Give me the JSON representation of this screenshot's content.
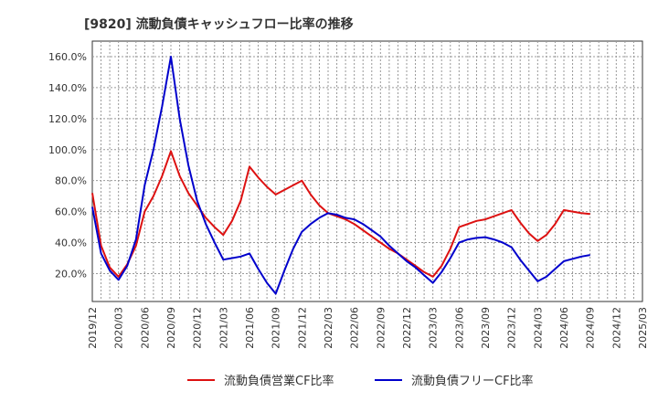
{
  "chart_data": {
    "type": "line",
    "title": "[9820]  流動負債キャッシュフロー比率の推移",
    "xlabel": "",
    "ylabel": "",
    "ylim": [
      2,
      170
    ],
    "y_ticks": [
      "20.0%",
      "40.0%",
      "60.0%",
      "80.0%",
      "100.0%",
      "120.0%",
      "140.0%",
      "160.0%"
    ],
    "y_tick_values": [
      20,
      40,
      60,
      80,
      100,
      120,
      140,
      160
    ],
    "x_ticks": [
      "2019/12",
      "2020/03",
      "2020/06",
      "2020/09",
      "2020/12",
      "2021/03",
      "2021/06",
      "2021/09",
      "2021/12",
      "2022/03",
      "2022/06",
      "2022/09",
      "2022/12",
      "2023/03",
      "2023/06",
      "2023/09",
      "2023/12",
      "2024/03",
      "2024/06",
      "2024/09",
      "2024/12",
      "2025/03"
    ],
    "grid": true,
    "legend_position": "bottom",
    "series": [
      {
        "name": "流動負債営業CF比率",
        "color": "#dd1111",
        "values": [
          [
            0,
            72
          ],
          [
            1,
            38
          ],
          [
            2,
            24
          ],
          [
            3,
            18
          ],
          [
            4,
            26
          ],
          [
            5,
            38
          ],
          [
            6,
            60
          ],
          [
            7,
            70
          ],
          [
            8,
            83
          ],
          [
            9,
            99
          ],
          [
            10,
            83
          ],
          [
            11,
            72
          ],
          [
            12,
            64
          ],
          [
            13,
            56
          ],
          [
            14,
            50
          ],
          [
            15,
            45
          ],
          [
            16,
            54
          ],
          [
            17,
            67
          ],
          [
            18,
            89
          ],
          [
            19,
            82
          ],
          [
            20,
            76
          ],
          [
            21,
            71
          ],
          [
            22,
            74
          ],
          [
            23,
            77
          ],
          [
            24,
            80
          ],
          [
            25,
            71
          ],
          [
            26,
            64
          ],
          [
            27,
            59
          ],
          [
            28,
            57
          ],
          [
            29,
            55
          ],
          [
            30,
            52
          ],
          [
            31,
            48
          ],
          [
            32,
            44
          ],
          [
            33,
            40
          ],
          [
            34,
            36
          ],
          [
            35,
            33
          ],
          [
            36,
            29
          ],
          [
            37,
            25
          ],
          [
            38,
            21
          ],
          [
            39,
            18
          ],
          [
            40,
            25
          ],
          [
            41,
            36
          ],
          [
            42,
            50
          ],
          [
            43,
            52
          ],
          [
            44,
            54
          ],
          [
            45,
            55
          ],
          [
            46,
            57
          ],
          [
            47,
            59
          ],
          [
            48,
            61
          ],
          [
            49,
            53
          ],
          [
            50,
            46
          ],
          [
            51,
            41
          ],
          [
            52,
            45
          ],
          [
            53,
            52
          ],
          [
            54,
            61
          ],
          [
            55,
            60
          ],
          [
            56,
            59
          ],
          [
            57,
            58.5
          ]
        ]
      },
      {
        "name": "流動負債フリーCF比率",
        "color": "#0000cc",
        "values": [
          [
            0,
            63
          ],
          [
            1,
            33
          ],
          [
            2,
            22
          ],
          [
            3,
            16
          ],
          [
            4,
            25
          ],
          [
            5,
            42
          ],
          [
            6,
            77
          ],
          [
            7,
            100
          ],
          [
            8,
            128
          ],
          [
            9,
            160
          ],
          [
            10,
            120
          ],
          [
            11,
            90
          ],
          [
            12,
            67
          ],
          [
            13,
            52
          ],
          [
            14,
            40
          ],
          [
            15,
            29
          ],
          [
            16,
            30
          ],
          [
            17,
            31
          ],
          [
            18,
            33
          ],
          [
            19,
            23
          ],
          [
            20,
            14
          ],
          [
            21,
            7
          ],
          [
            22,
            22
          ],
          [
            23,
            36
          ],
          [
            24,
            47
          ],
          [
            25,
            52
          ],
          [
            26,
            56
          ],
          [
            27,
            59
          ],
          [
            28,
            58
          ],
          [
            29,
            56
          ],
          [
            30,
            55
          ],
          [
            31,
            52
          ],
          [
            32,
            48
          ],
          [
            33,
            44
          ],
          [
            34,
            38
          ],
          [
            35,
            33
          ],
          [
            36,
            28
          ],
          [
            37,
            24
          ],
          [
            38,
            19
          ],
          [
            39,
            14
          ],
          [
            40,
            21
          ],
          [
            41,
            30
          ],
          [
            42,
            40
          ],
          [
            43,
            42
          ],
          [
            44,
            43
          ],
          [
            45,
            43.5
          ],
          [
            46,
            42
          ],
          [
            47,
            40
          ],
          [
            48,
            37
          ],
          [
            49,
            29
          ],
          [
            50,
            22
          ],
          [
            51,
            15
          ],
          [
            52,
            18
          ],
          [
            53,
            23
          ],
          [
            54,
            28
          ],
          [
            55,
            29.5
          ],
          [
            56,
            31
          ],
          [
            57,
            32
          ]
        ]
      }
    ]
  }
}
